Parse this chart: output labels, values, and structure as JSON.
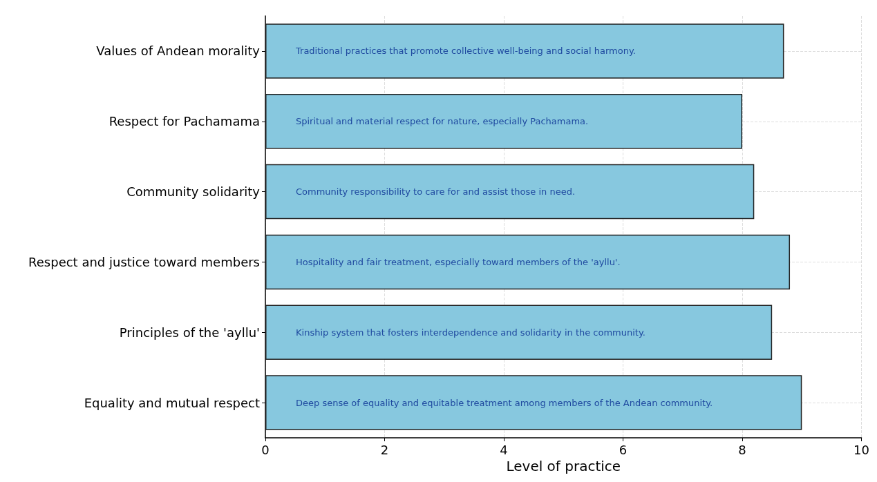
{
  "chart_data": {
    "type": "bar",
    "orientation": "horizontal",
    "xlabel": "Level of practice",
    "categories": [
      "Values of Andean morality",
      "Respect for Pachamama",
      "Community solidarity",
      "Respect and justice toward members",
      "Principles of the 'ayllu'",
      "Equality and mutual respect"
    ],
    "values": [
      8.7,
      8.0,
      8.2,
      8.8,
      8.5,
      9.0
    ],
    "color": "#87c8df",
    "xlim": [
      0,
      10
    ],
    "xticks": [
      0,
      2,
      4,
      6,
      8,
      10
    ],
    "grid": true,
    "annotations": [
      "Traditional practices that promote collective well-being and social harmony.",
      "Spiritual and material respect for nature, especially Pachamama.",
      "Community responsibility to care for and assist those in need.",
      "Hospitality and fair treatment, especially toward members of the 'ayllu'.",
      "Kinship system that fosters interdependence and solidarity in the community.",
      "Deep sense of equality and equitable treatment among members of the Andean community."
    ]
  }
}
